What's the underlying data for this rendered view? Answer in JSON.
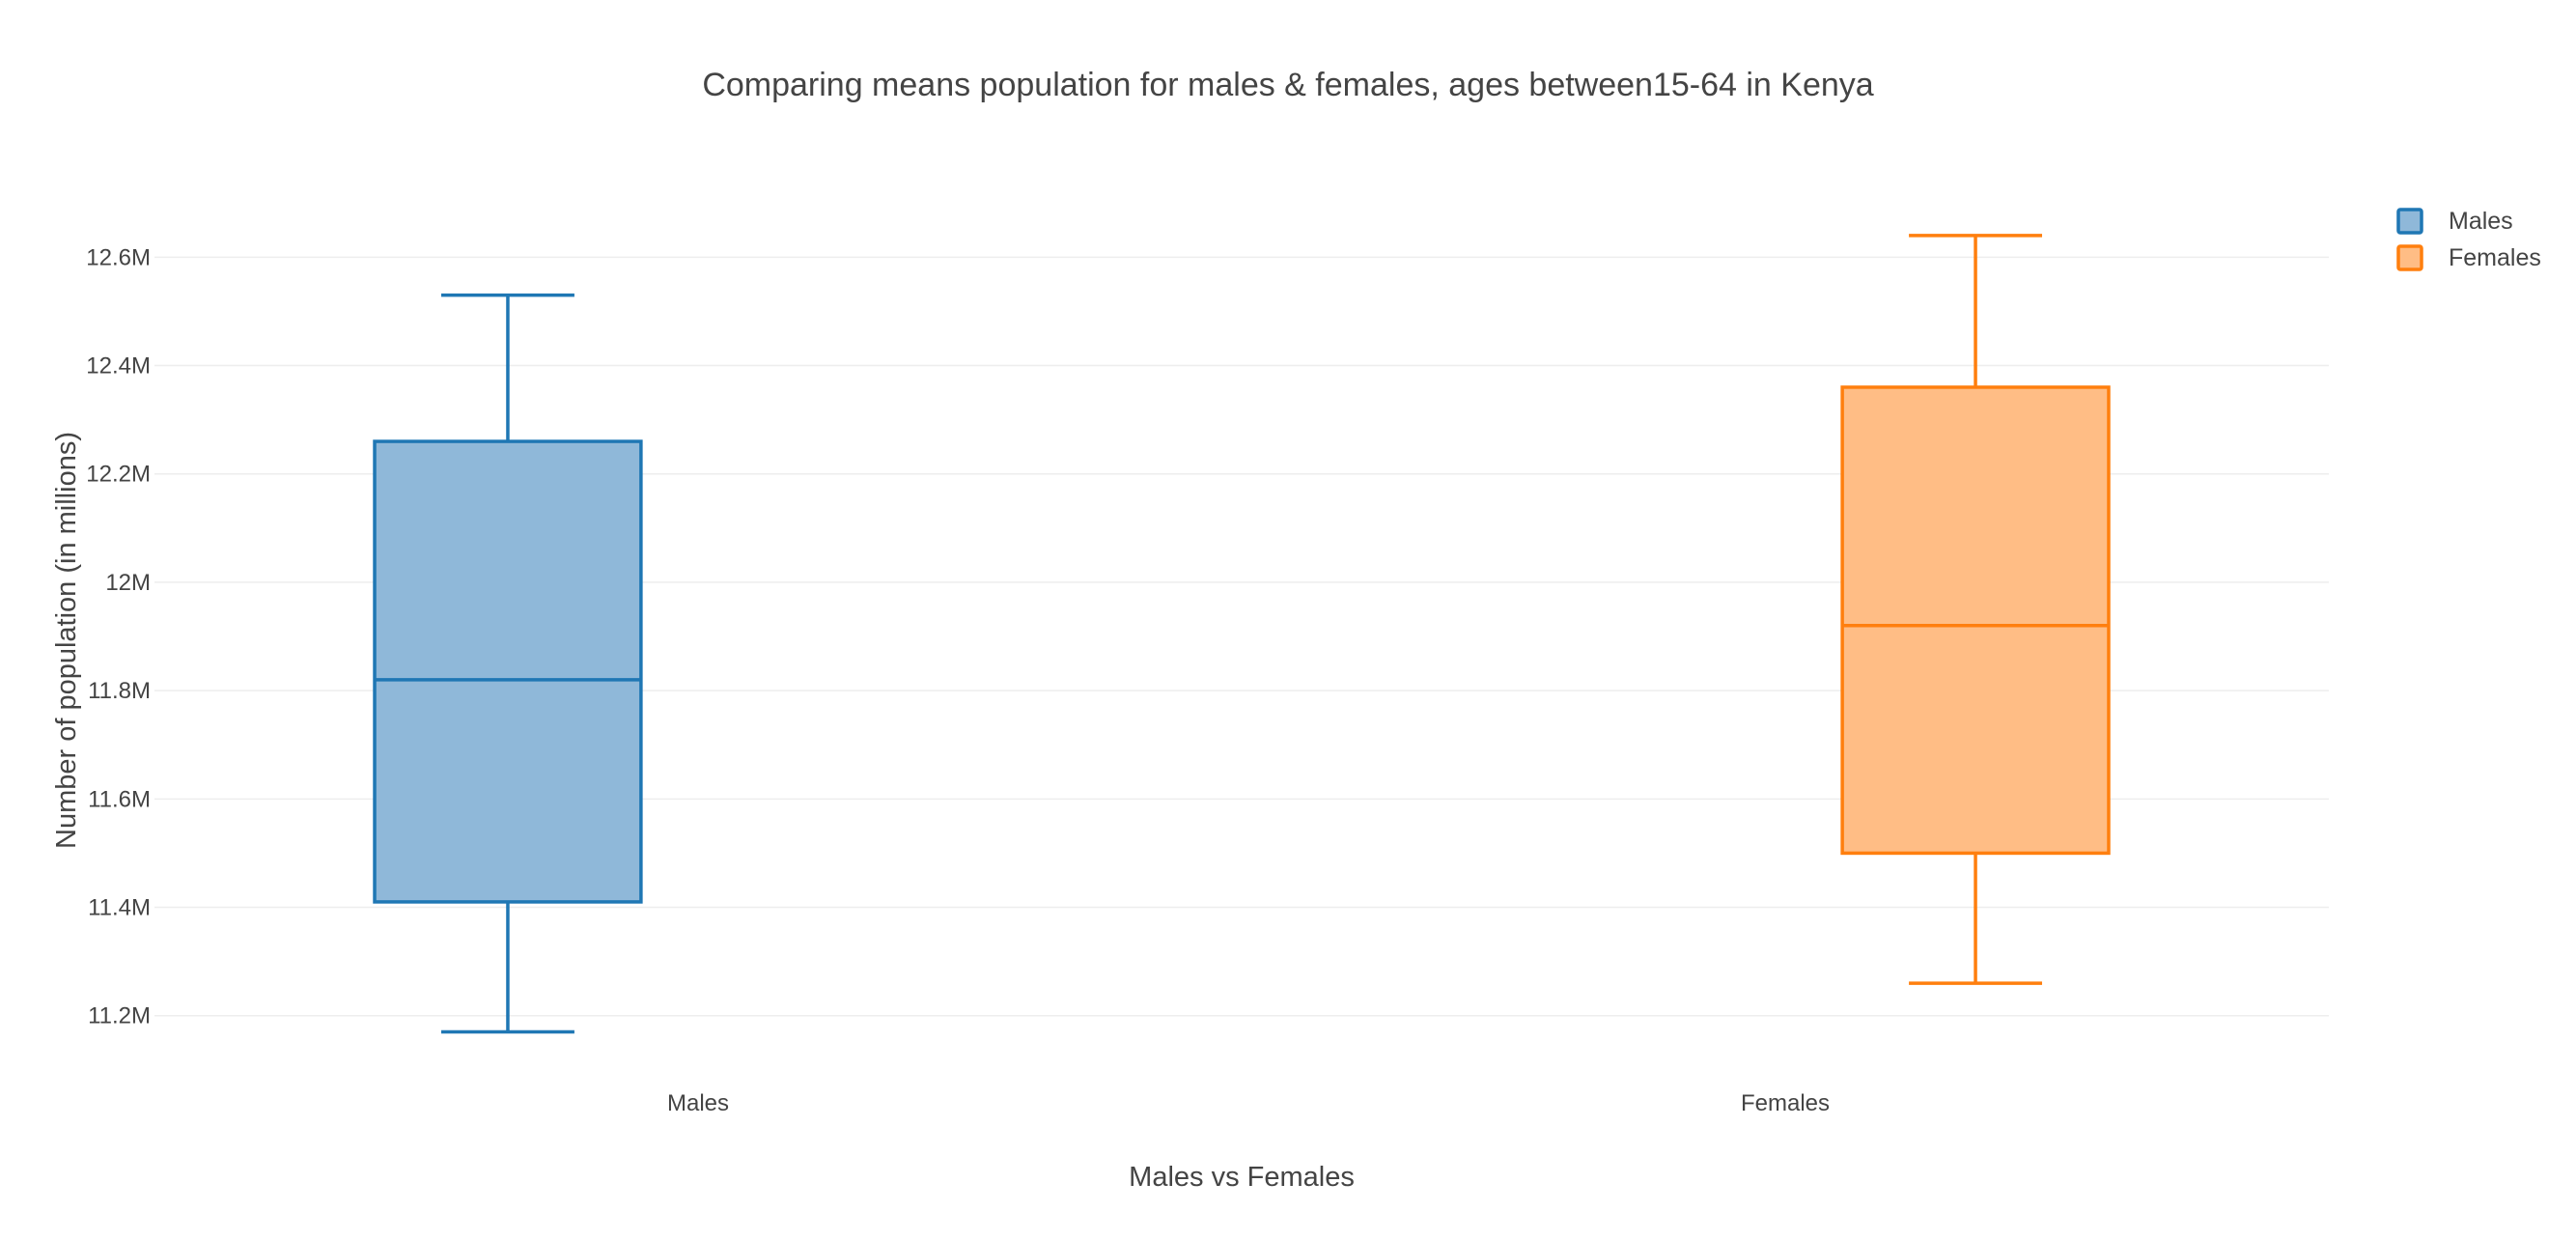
{
  "chart_data": {
    "type": "box",
    "title": "Comparing means population for males & females, ages between15-64 in Kenya",
    "xlabel": "Males vs Females",
    "ylabel": "Number of population (in millions)",
    "ylim": [
      11.13,
      12.72
    ],
    "y_ticks": [
      11.2,
      11.4,
      11.6,
      11.8,
      12.0,
      12.2,
      12.4,
      12.6
    ],
    "y_tick_labels": [
      "11.2M",
      "11.4M",
      "11.6M",
      "11.8M",
      "12M",
      "12.2M",
      "12.4M",
      "12.6M"
    ],
    "categories": [
      "Males",
      "Females"
    ],
    "grid": true,
    "legend_position": "top-right",
    "series": [
      {
        "name": "Males",
        "color": "#1f77b4",
        "fill": "#8fb8d9",
        "min": 11.17,
        "q1": 11.41,
        "median": 11.82,
        "q3": 12.26,
        "max": 12.53
      },
      {
        "name": "Females",
        "color": "#ff7f0e",
        "fill": "#ffbd85",
        "min": 11.26,
        "q1": 11.5,
        "median": 11.92,
        "q3": 12.36,
        "max": 12.64
      }
    ]
  }
}
